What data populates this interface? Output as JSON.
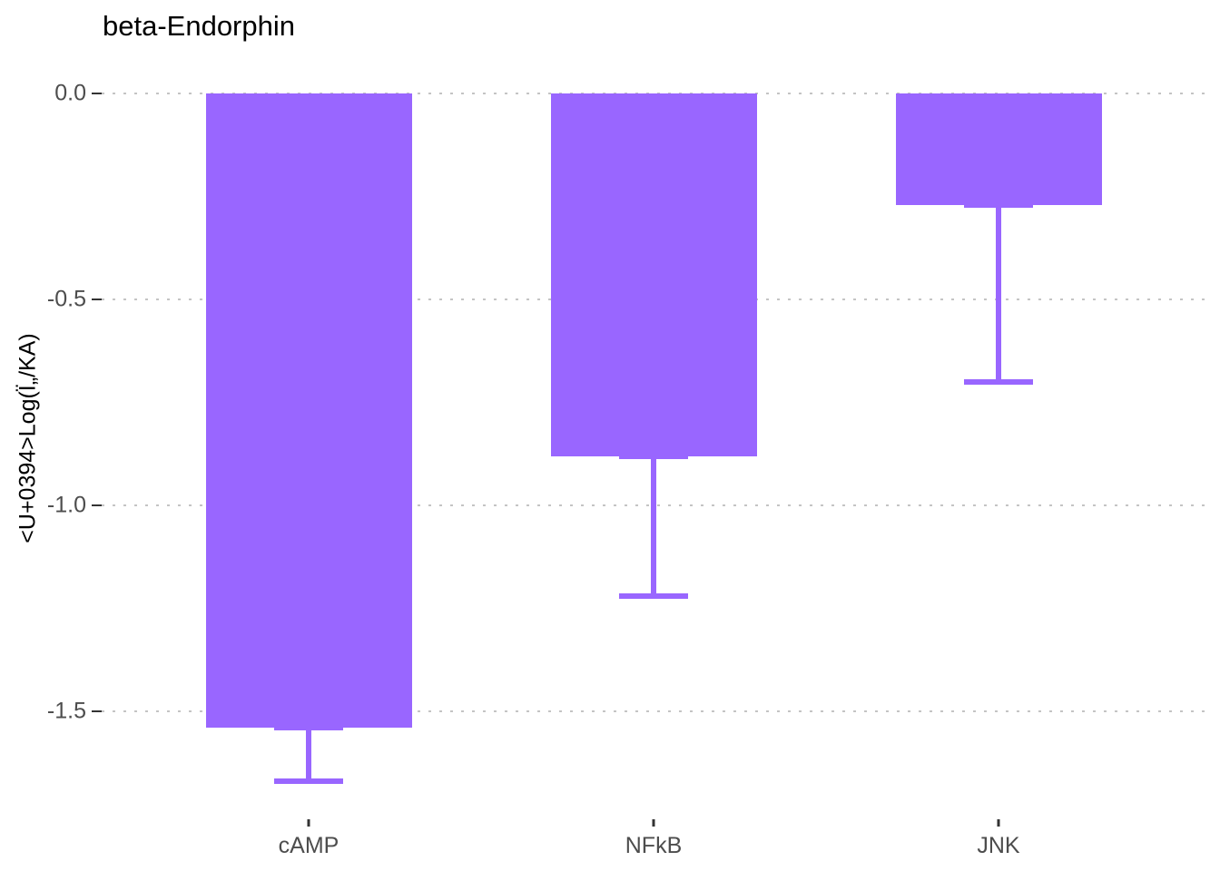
{
  "chart_data": {
    "type": "bar",
    "title": "beta-Endorphin",
    "ylabel": "<U+0394>Log(Ï„/KA)",
    "xlabel": "",
    "categories": [
      "cAMP",
      "NFkB",
      "JNK"
    ],
    "values": [
      -1.54,
      -0.88,
      -0.27
    ],
    "error_bar_lower_ends": [
      -1.67,
      -1.22,
      -0.7
    ],
    "error_bar_upper_ends": [
      -1.54,
      -0.88,
      -0.27
    ],
    "yticks": [
      {
        "label": "0.0",
        "value": 0.0
      },
      {
        "label": "-0.5",
        "value": -0.5
      },
      {
        "label": "-1.0",
        "value": -1.0
      },
      {
        "label": "-1.5",
        "value": -1.5
      }
    ],
    "ylim": [
      0.09,
      -1.76
    ],
    "grid": "horizontal-dotted",
    "legend_position": "none",
    "orientation": "vertical-negative",
    "colors": {
      "bar": "#9966FF",
      "error_bar": "#9966FF",
      "gridline": "#C4C4C4",
      "tick_mark": "#333333",
      "tick_label": "#4D4D4D",
      "title": "#000000",
      "axis_title": "#000000",
      "background": "#FFFFFF"
    }
  }
}
